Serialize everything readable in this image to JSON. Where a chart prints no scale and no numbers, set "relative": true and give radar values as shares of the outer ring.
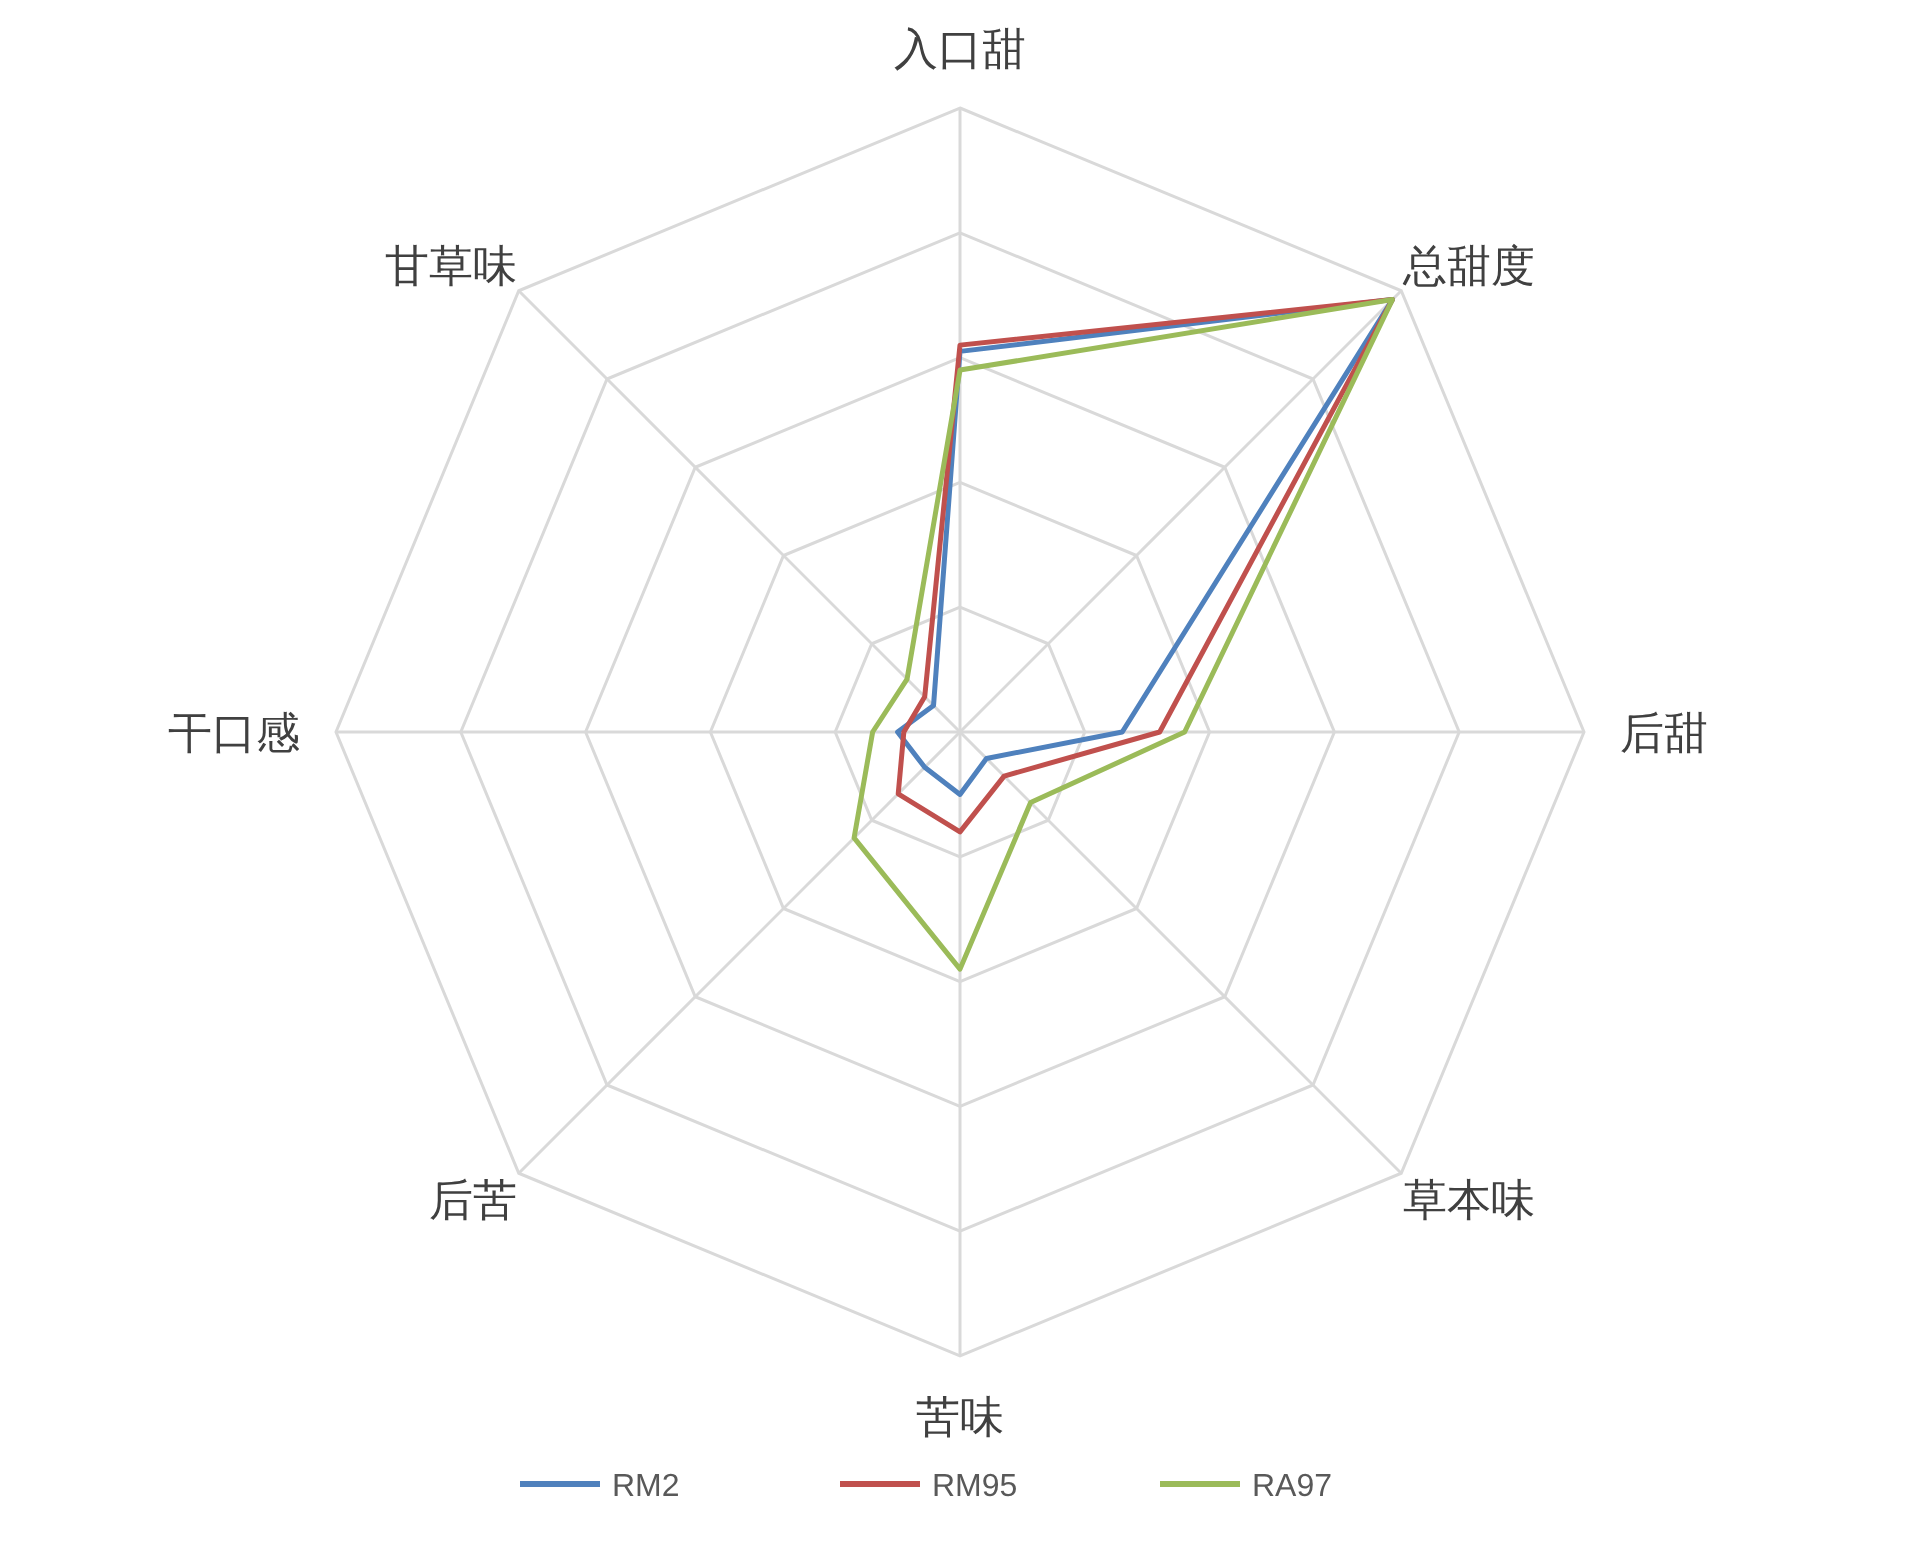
{
  "chart_data": {
    "type": "radar",
    "relative": true,
    "grid": true,
    "legend": "bottom",
    "categories": [
      "入口甜",
      "总甜度",
      "后甜",
      "草本味",
      "苦味",
      "后苦",
      "干口感",
      "甘草味"
    ],
    "series": [
      {
        "name": "RM2",
        "color": "#4f81bd",
        "values": [
          0.61,
          0.98,
          0.26,
          0.06,
          0.1,
          0.08,
          0.1,
          0.06
        ]
      },
      {
        "name": "RM95",
        "color": "#c0504d",
        "values": [
          0.62,
          0.98,
          0.32,
          0.1,
          0.16,
          0.14,
          0.09,
          0.08
        ]
      },
      {
        "name": "RA97",
        "color": "#9bbb59",
        "values": [
          0.58,
          0.98,
          0.36,
          0.16,
          0.38,
          0.24,
          0.14,
          0.12
        ]
      }
    ]
  }
}
